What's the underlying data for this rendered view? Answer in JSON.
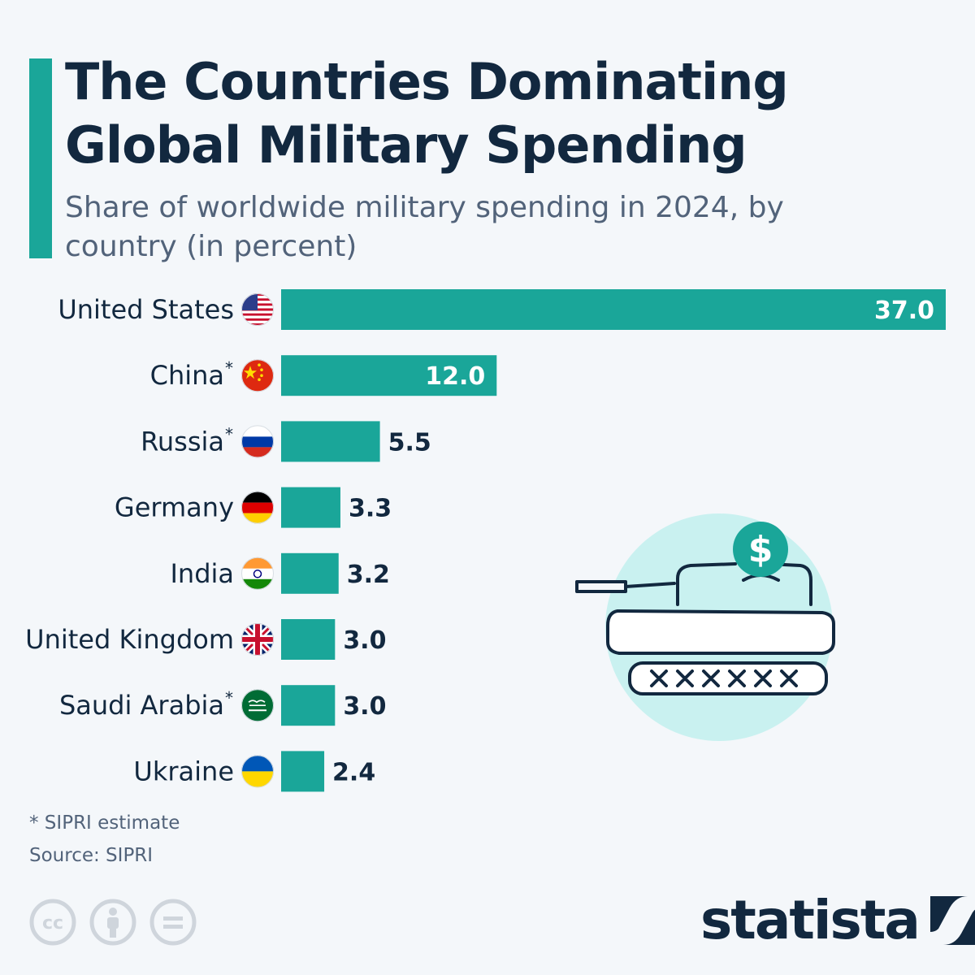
{
  "header": {
    "title": "The Countries Dominating Global Military Spending",
    "subtitle": "Share of worldwide military spending in 2024, by country (in percent)"
  },
  "colors": {
    "bar": "#1aa699",
    "accent": "#1aa699",
    "text_dark": "#12283f",
    "text_muted": "#52637a",
    "illustration_circle": "#c9f1f0"
  },
  "chart_data": {
    "type": "bar",
    "orientation": "horizontal",
    "title": "The Countries Dominating Global Military Spending",
    "subtitle": "Share of worldwide military spending in 2024, by country (in percent)",
    "categories": [
      "United States",
      "China*",
      "Russia*",
      "Germany",
      "India",
      "United Kingdom",
      "Saudi Arabia*",
      "Ukraine"
    ],
    "values": [
      37.0,
      12.0,
      5.5,
      3.3,
      3.2,
      3.0,
      3.0,
      2.4
    ],
    "value_labels": [
      "37.0",
      "12.0",
      "5.5",
      "3.3",
      "3.2",
      "3.0",
      "3.0",
      "2.4"
    ],
    "flags": [
      "us-flag-icon",
      "china-flag-icon",
      "russia-flag-icon",
      "germany-flag-icon",
      "india-flag-icon",
      "uk-flag-icon",
      "saudi-arabia-flag-icon",
      "ukraine-flag-icon"
    ],
    "xlim": [
      0,
      37.0
    ],
    "xlabel": "",
    "ylabel": "",
    "grid": false
  },
  "footer": {
    "footnote": "* SIPRI estimate",
    "source": "Source: SIPRI",
    "brand": "statista",
    "license_icons": [
      "cc-icon",
      "attribution-icon",
      "no-derivatives-icon"
    ]
  },
  "illustration": {
    "icon": "tank-with-dollar-icon",
    "dollar_sign": "$"
  }
}
